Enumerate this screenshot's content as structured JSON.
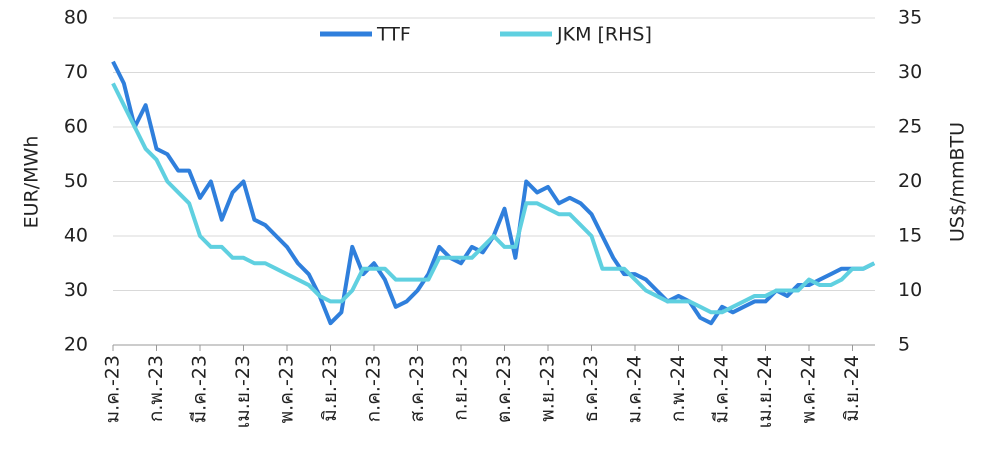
{
  "chart_data": {
    "type": "line",
    "categories": [
      "ม.ค.-23",
      null,
      null,
      null,
      "ก.พ.-23",
      null,
      null,
      null,
      "มี.ค.-23",
      null,
      null,
      null,
      "เม.ย.-23",
      null,
      null,
      null,
      "พ.ค.-23",
      null,
      null,
      null,
      "มิ.ย.-23",
      null,
      null,
      null,
      "ก.ค.-23",
      null,
      null,
      null,
      "ส.ค.-23",
      null,
      null,
      null,
      "ก.ย.-23",
      null,
      null,
      null,
      "ต.ค.-23",
      null,
      null,
      null,
      "พ.ย.-23",
      null,
      null,
      null,
      "ธ.ค.-23",
      null,
      null,
      null,
      "ม.ค.-24",
      null,
      null,
      null,
      "ก.พ.-24",
      null,
      null,
      null,
      "มี.ค.-24",
      null,
      null,
      null,
      "เม.ย.-24",
      null,
      null,
      null,
      "พ.ค.-24",
      null,
      null,
      null,
      "มิ.ย.-24",
      null,
      null
    ],
    "series": [
      {
        "name": "TTF",
        "color": "#2f7fdc",
        "axis": "y",
        "values": [
          72,
          68,
          60,
          64,
          56,
          55,
          52,
          52,
          47,
          50,
          43,
          48,
          50,
          43,
          42,
          40,
          38,
          35,
          33,
          29,
          24,
          26,
          38,
          33,
          35,
          32,
          27,
          28,
          30,
          33,
          38,
          36,
          35,
          38,
          37,
          40,
          45,
          36,
          50,
          48,
          49,
          46,
          47,
          46,
          44,
          40,
          36,
          33,
          33,
          32,
          30,
          28,
          29,
          28,
          25,
          24,
          27,
          26,
          27,
          28,
          28,
          30,
          29,
          31,
          31,
          32,
          33,
          34,
          34,
          34,
          35
        ]
      },
      {
        "name": "JKM [RHS]",
        "color": "#5fd0e0",
        "axis": "y2",
        "values": [
          29,
          27,
          25,
          23,
          22,
          20,
          19,
          18,
          15,
          14,
          14,
          13,
          13,
          12.5,
          12.5,
          12,
          11.5,
          11,
          10.5,
          9.5,
          9,
          9,
          10,
          12,
          12,
          12,
          11,
          11,
          11,
          11,
          13,
          13,
          13,
          13,
          14,
          15,
          14,
          14,
          18,
          18,
          17.5,
          17,
          17,
          16,
          15,
          12,
          12,
          12,
          11,
          10,
          9.5,
          9,
          9,
          9,
          8.5,
          8,
          8,
          8.5,
          9,
          9.5,
          9.5,
          10,
          10,
          10,
          11,
          10.5,
          10.5,
          11,
          12,
          12,
          12.5
        ]
      }
    ],
    "ylabel": "EUR/MWh",
    "y2label": "US$/mmBTU",
    "ylim": [
      20,
      80
    ],
    "yticks": [
      20,
      30,
      40,
      50,
      60,
      70,
      80
    ],
    "y2lim": [
      5,
      35
    ],
    "y2ticks": [
      5,
      10,
      15,
      20,
      25,
      30,
      35
    ],
    "grid": true,
    "legend": "top"
  }
}
